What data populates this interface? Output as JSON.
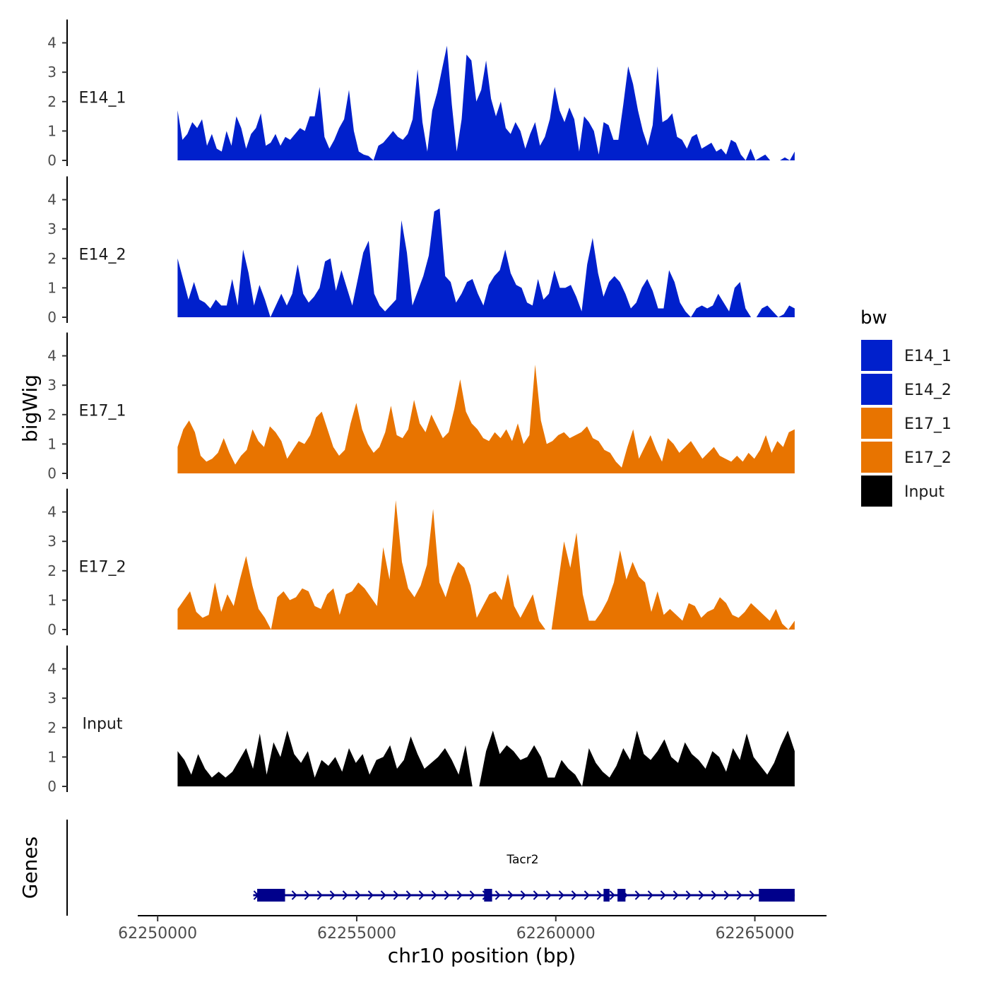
{
  "chart_data": {
    "type": "area",
    "ylabel": "bigWig",
    "xlabel": "chr10 position (bp)",
    "genes_label": "Genes",
    "xlim": [
      62249500,
      62266800
    ],
    "x_ticks": [
      62250000,
      62255000,
      62260000,
      62265000
    ],
    "x_tick_labels": [
      "62250000",
      "62255000",
      "62260000",
      "62265000"
    ],
    "ylim": [
      0,
      4.6
    ],
    "y_ticks": [
      0,
      1,
      2,
      3,
      4
    ],
    "y_tick_labels": [
      "0",
      "1",
      "2",
      "3",
      "4"
    ],
    "legend": {
      "title": "bw",
      "position": "right",
      "items": [
        {
          "name": "E14_1",
          "color": "#0020CC"
        },
        {
          "name": "E14_2",
          "color": "#0020CC"
        },
        {
          "name": "E17_1",
          "color": "#E87400"
        },
        {
          "name": "E17_2",
          "color": "#E87400"
        },
        {
          "name": "Input",
          "color": "#000000"
        }
      ]
    },
    "x_range": [
      62250500,
      62266000
    ],
    "series": [
      {
        "name": "E14_1",
        "color": "#0020CC",
        "values": [
          1.7,
          0.7,
          0.9,
          1.3,
          1.1,
          1.4,
          0.5,
          0.9,
          0.4,
          0.3,
          1.0,
          0.5,
          1.5,
          1.1,
          0.4,
          0.9,
          1.1,
          1.6,
          0.5,
          0.6,
          0.9,
          0.5,
          0.8,
          0.7,
          0.9,
          1.1,
          1.0,
          1.5,
          1.5,
          2.5,
          0.8,
          0.4,
          0.7,
          1.1,
          1.4,
          2.4,
          1.0,
          0.3,
          0.2,
          0.15,
          0.0,
          0.5,
          0.6,
          0.8,
          1.0,
          0.8,
          0.7,
          0.9,
          1.4,
          3.1,
          1.3,
          0.3,
          1.7,
          2.3,
          3.1,
          3.9,
          1.9,
          0.3,
          1.4,
          3.6,
          3.4,
          2.0,
          2.4,
          3.4,
          2.1,
          1.5,
          2.0,
          1.1,
          0.9,
          1.3,
          1.0,
          0.4,
          0.9,
          1.3,
          0.5,
          0.8,
          1.4,
          2.5,
          1.7,
          1.3,
          1.8,
          1.4,
          0.3,
          1.5,
          1.3,
          1.0,
          0.2,
          1.3,
          1.2,
          0.7,
          0.7,
          1.9,
          3.2,
          2.6,
          1.7,
          1.0,
          0.5,
          1.2,
          3.2,
          1.3,
          1.4,
          1.6,
          0.8,
          0.7,
          0.4,
          0.8,
          0.9,
          0.4,
          0.5,
          0.6,
          0.3,
          0.4,
          0.2,
          0.7,
          0.6,
          0.2,
          0.0,
          0.4,
          0.0,
          0.1,
          0.2,
          0.0,
          0.0,
          0.0,
          0.1,
          0.0,
          0.3
        ]
      },
      {
        "name": "E14_2",
        "color": "#0020CC",
        "values": [
          2.0,
          1.3,
          0.6,
          1.2,
          0.6,
          0.5,
          0.3,
          0.6,
          0.4,
          0.4,
          1.3,
          0.4,
          2.3,
          1.5,
          0.4,
          1.1,
          0.6,
          0.0,
          0.4,
          0.8,
          0.4,
          0.8,
          1.8,
          0.8,
          0.5,
          0.7,
          1.0,
          1.9,
          2.0,
          0.9,
          1.6,
          1.0,
          0.4,
          1.3,
          2.2,
          2.6,
          0.8,
          0.4,
          0.2,
          0.4,
          0.6,
          3.3,
          2.2,
          0.4,
          0.9,
          1.4,
          2.1,
          3.6,
          3.7,
          1.4,
          1.2,
          0.5,
          0.8,
          1.2,
          1.3,
          0.8,
          0.4,
          1.1,
          1.4,
          1.6,
          2.3,
          1.5,
          1.1,
          1.0,
          0.5,
          0.4,
          1.3,
          0.6,
          0.8,
          1.6,
          1.0,
          1.0,
          1.1,
          0.7,
          0.2,
          1.8,
          2.7,
          1.5,
          0.7,
          1.2,
          1.4,
          1.2,
          0.8,
          0.3,
          0.5,
          1.0,
          1.3,
          0.9,
          0.3,
          0.3,
          1.6,
          1.2,
          0.5,
          0.2,
          0.0,
          0.3,
          0.4,
          0.3,
          0.4,
          0.8,
          0.5,
          0.2,
          1.0,
          1.2,
          0.3,
          0.0,
          0.0,
          0.3,
          0.4,
          0.2,
          0.0,
          0.1,
          0.4,
          0.3
        ]
      },
      {
        "name": "E17_1",
        "color": "#E87400",
        "values": [
          0.9,
          1.5,
          1.8,
          1.4,
          0.6,
          0.4,
          0.5,
          0.7,
          1.2,
          0.7,
          0.3,
          0.6,
          0.8,
          1.5,
          1.1,
          0.9,
          1.6,
          1.4,
          1.1,
          0.5,
          0.8,
          1.1,
          1.0,
          1.3,
          1.9,
          2.1,
          1.5,
          0.9,
          0.6,
          0.8,
          1.7,
          2.4,
          1.5,
          1.0,
          0.7,
          0.9,
          1.4,
          2.3,
          1.3,
          1.2,
          1.5,
          2.5,
          1.7,
          1.4,
          2.0,
          1.6,
          1.2,
          1.4,
          2.2,
          3.2,
          2.1,
          1.7,
          1.5,
          1.2,
          1.1,
          1.4,
          1.2,
          1.5,
          1.1,
          1.7,
          1.0,
          1.3,
          3.7,
          1.8,
          1.0,
          1.1,
          1.3,
          1.4,
          1.2,
          1.3,
          1.4,
          1.6,
          1.2,
          1.1,
          0.8,
          0.7,
          0.4,
          0.2,
          0.9,
          1.5,
          0.5,
          0.9,
          1.3,
          0.8,
          0.4,
          1.2,
          1.0,
          0.7,
          0.9,
          1.1,
          0.8,
          0.5,
          0.7,
          0.9,
          0.6,
          0.5,
          0.4,
          0.6,
          0.4,
          0.7,
          0.5,
          0.8,
          1.3,
          0.7,
          1.1,
          0.9,
          1.4,
          1.5
        ]
      },
      {
        "name": "E17_2",
        "color": "#E87400",
        "values": [
          0.7,
          1.0,
          1.3,
          0.6,
          0.4,
          0.5,
          1.6,
          0.6,
          1.2,
          0.8,
          1.7,
          2.5,
          1.5,
          0.7,
          0.4,
          0.0,
          1.1,
          1.3,
          1.0,
          1.1,
          1.4,
          1.3,
          0.8,
          0.7,
          1.2,
          1.4,
          0.5,
          1.2,
          1.3,
          1.6,
          1.4,
          1.1,
          0.8,
          2.8,
          1.7,
          4.4,
          2.3,
          1.4,
          1.1,
          1.5,
          2.2,
          4.1,
          1.6,
          1.1,
          1.8,
          2.3,
          2.1,
          1.5,
          0.4,
          0.8,
          1.2,
          1.3,
          1.0,
          1.9,
          0.8,
          0.4,
          0.8,
          1.2,
          0.3,
          0.0,
          0.0,
          1.5,
          3.0,
          2.1,
          3.3,
          1.2,
          0.3,
          0.3,
          0.6,
          1.0,
          1.6,
          2.7,
          1.7,
          2.3,
          1.8,
          1.6,
          0.6,
          1.3,
          0.5,
          0.7,
          0.5,
          0.3,
          0.9,
          0.8,
          0.4,
          0.6,
          0.7,
          1.1,
          0.9,
          0.5,
          0.4,
          0.6,
          0.9,
          0.7,
          0.5,
          0.3,
          0.7,
          0.2,
          0.0,
          0.3
        ]
      },
      {
        "name": "Input",
        "color": "#000000",
        "values": [
          1.2,
          0.9,
          0.4,
          1.1,
          0.6,
          0.3,
          0.5,
          0.3,
          0.5,
          0.9,
          1.3,
          0.6,
          1.8,
          0.4,
          1.5,
          1.0,
          1.9,
          1.1,
          0.8,
          1.2,
          0.3,
          0.9,
          0.7,
          1.0,
          0.5,
          1.3,
          0.8,
          1.1,
          0.4,
          0.9,
          1.0,
          1.4,
          0.6,
          0.9,
          1.7,
          1.1,
          0.6,
          0.8,
          1.0,
          1.3,
          0.9,
          0.4,
          1.4,
          0.0,
          0.0,
          1.2,
          1.9,
          1.1,
          1.4,
          1.2,
          0.9,
          1.0,
          1.4,
          1.0,
          0.3,
          0.3,
          0.9,
          0.6,
          0.4,
          0.0,
          1.3,
          0.8,
          0.5,
          0.3,
          0.7,
          1.3,
          0.9,
          1.9,
          1.1,
          0.9,
          1.2,
          1.6,
          1.0,
          0.8,
          1.5,
          1.1,
          0.9,
          0.6,
          1.2,
          1.0,
          0.5,
          1.3,
          0.9,
          1.8,
          1.0,
          0.7,
          0.4,
          0.8,
          1.4,
          1.9,
          1.2
        ]
      }
    ],
    "gene": {
      "name": "Tacr2",
      "start": 62252400,
      "end": 62266000,
      "color": "#00008B",
      "exons": [
        [
          62252500,
          62253200
        ],
        [
          62258200,
          62258400
        ],
        [
          62261200,
          62261350
        ],
        [
          62261550,
          62261750
        ],
        [
          62265100,
          62266000
        ]
      ]
    }
  }
}
